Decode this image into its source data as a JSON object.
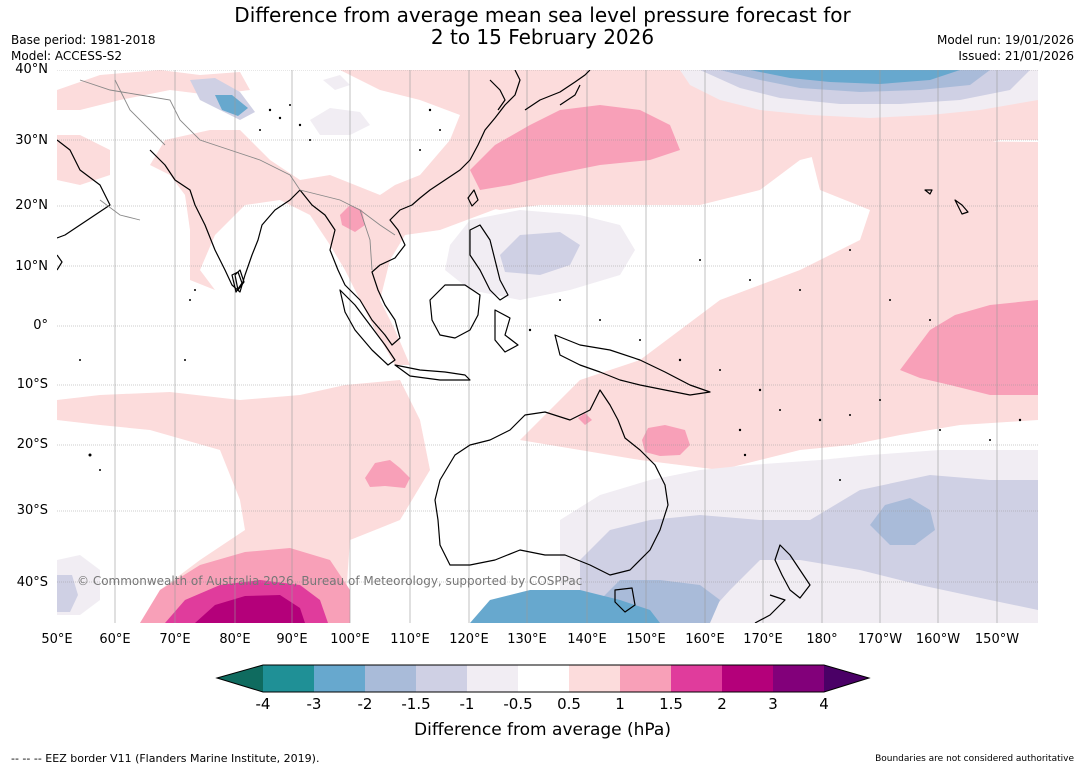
{
  "title": {
    "line1": "Difference from average mean sea level pressure forecast for",
    "line2": "2 to 15 February 2026"
  },
  "meta_left": {
    "base_period": "Base period: 1981-2018",
    "model": "Model: ACCESS-S2"
  },
  "meta_right": {
    "model_run": "Model run: 19/01/2026",
    "issued": "Issued: 21/01/2026"
  },
  "lat_labels": [
    "40°N",
    "30°N",
    "20°N",
    "10°N",
    "0°",
    "10°S",
    "20°S",
    "30°S",
    "40°S"
  ],
  "lon_labels": [
    "50°E",
    "60°E",
    "70°E",
    "80°E",
    "90°E",
    "100°E",
    "110°E",
    "120°E",
    "130°E",
    "140°E",
    "150°E",
    "160°E",
    "170°E",
    "180°",
    "170°W",
    "160°W",
    "150°W"
  ],
  "copyright": "© Commonwealth of Australia 2026, Bureau of Meteorology, supported by COSPPac",
  "colorbar": {
    "labels": [
      "-4",
      "-3",
      "-2",
      "-1.5",
      "-1",
      "-0.5",
      "0.5",
      "1",
      "1.5",
      "2",
      "3",
      "4"
    ],
    "colors": [
      "#0f6b5f",
      "#1f9096",
      "#67a8ce",
      "#a9bbd9",
      "#cfd0e4",
      "#f1edf3",
      "#ffffff",
      "#fcdcdc",
      "#f8a0b8",
      "#e03c9c",
      "#b4007a",
      "#82007a",
      "#4a0066"
    ],
    "title": "Difference from average (hPa)"
  },
  "footer_left": "--  --  -- EEZ border V11 (Flanders Marine Institute, 2019).",
  "footer_right": "Boundaries are not considered authoritative"
}
